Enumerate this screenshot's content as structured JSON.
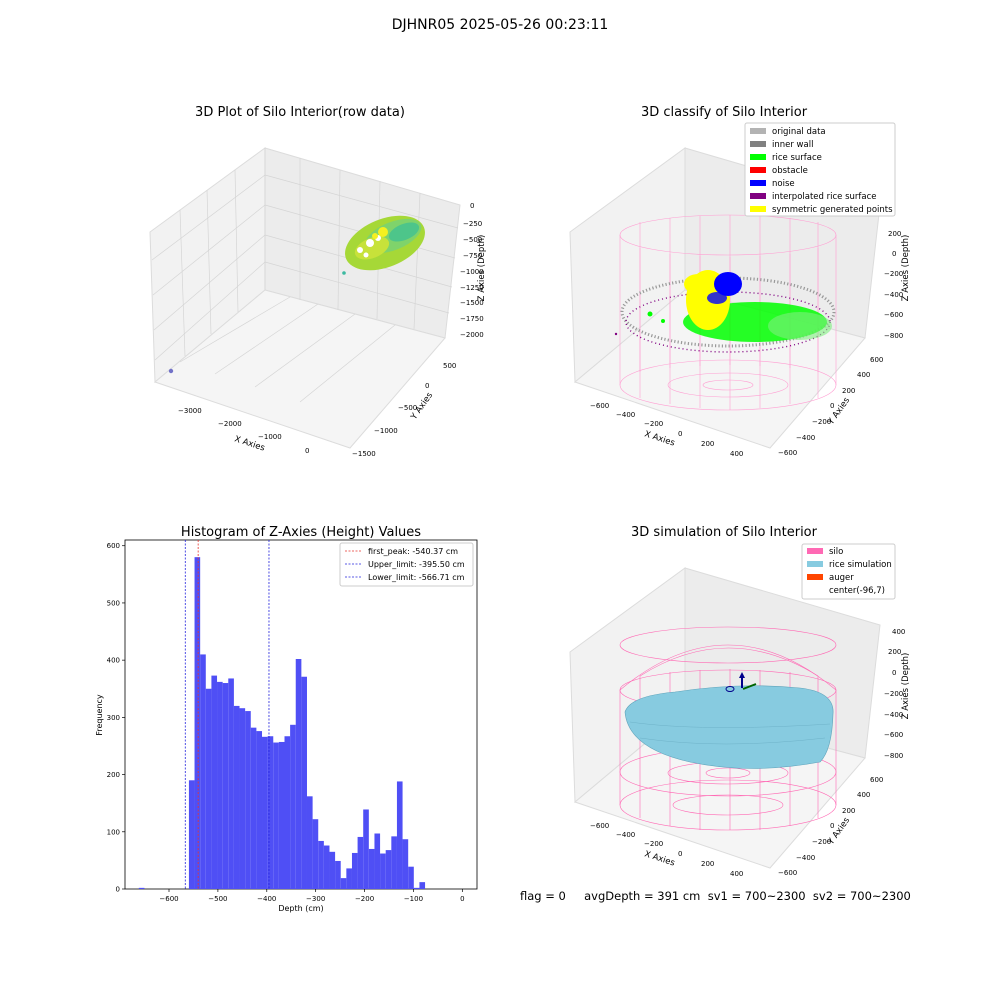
{
  "figure": {
    "title": "DJHNR05 2025-05-26 00:23:11",
    "status_line": "flag = 0     avgDepth = 391 cm  sv1 = 700~2300  sv2 = 700~2300"
  },
  "colors": {
    "hist_bar": "#4f4ff5",
    "first_peak": "#e8362e",
    "limit": "#2222dd",
    "silo": "#ff69b4",
    "rice_simulation": "#87cbe0",
    "auger": "#ff4500",
    "original_data": "#b3b3b3",
    "inner_wall": "#808080",
    "rice_surface": "#00ff00",
    "obstacle": "#ff0000",
    "noise": "#0000ff",
    "interpolated_rice_surface": "#800080",
    "symmetric_generated_points": "#ffff00"
  },
  "chart_data": [
    {
      "type": "scatter",
      "title": "3D Plot of Silo Interior(row data)",
      "xlabel": "X Axies",
      "ylabel": "Y Axies",
      "zlabel": "Z Axies (Depth)",
      "x_ticks": [
        "−3000",
        "−2000",
        "−1000",
        "0"
      ],
      "y_ticks": [
        "500",
        "0",
        "−500",
        "−1000",
        "−1500"
      ],
      "z_ticks": [
        "0",
        "−250",
        "−500",
        "−750",
        "−1000",
        "−1250",
        "−1500",
        "−1750",
        "−2000"
      ],
      "xlim": [
        -3500,
        500
      ],
      "ylim": [
        -1500,
        600
      ],
      "zlim": [
        -2100,
        100
      ]
    },
    {
      "type": "scatter",
      "title": "3D classify of Silo Interior",
      "xlabel": "X Axies",
      "ylabel": "Y Axies",
      "zlabel": "Z Axies (Depth)",
      "x_ticks": [
        "−600",
        "−400",
        "−200",
        "0",
        "200",
        "400"
      ],
      "y_ticks": [
        "600",
        "400",
        "200",
        "0",
        "−200",
        "−400",
        "−600"
      ],
      "z_ticks": [
        "200",
        "0",
        "−200",
        "−400",
        "−600",
        "−800"
      ],
      "legend": [
        "original data",
        "inner wall",
        "rice surface",
        "obstacle",
        "noise",
        "interpolated rice surface",
        "symmetric generated points"
      ],
      "legend_loc": "upper right"
    },
    {
      "type": "bar",
      "title": "Histogram of Z-Axies (Height) Values",
      "xlabel": "Depth (cm)",
      "ylabel": "Frequency",
      "xlim": [
        -690,
        30
      ],
      "ylim": [
        0,
        610
      ],
      "x_ticks": [
        -600,
        -500,
        -400,
        -300,
        -200,
        -100,
        0
      ],
      "x_tick_labels": [
        "−600",
        "−500",
        "−400",
        "−300",
        "−200",
        "−100",
        "0"
      ],
      "y_ticks": [
        0,
        100,
        200,
        300,
        400,
        500,
        600
      ],
      "y_tick_labels": [
        "0",
        "100",
        "200",
        "300",
        "400",
        "500",
        "600"
      ],
      "bin_width": 11.5,
      "bins": [
        {
          "x": -656,
          "v": 2
        },
        {
          "x": -553.5,
          "v": 190
        },
        {
          "x": -542,
          "v": 580
        },
        {
          "x": -530.5,
          "v": 410
        },
        {
          "x": -519,
          "v": 350
        },
        {
          "x": -507.5,
          "v": 373
        },
        {
          "x": -496,
          "v": 362
        },
        {
          "x": -484.5,
          "v": 360
        },
        {
          "x": -473,
          "v": 368
        },
        {
          "x": -461.5,
          "v": 320
        },
        {
          "x": -450,
          "v": 316
        },
        {
          "x": -438.5,
          "v": 311
        },
        {
          "x": -427,
          "v": 282
        },
        {
          "x": -415.5,
          "v": 276
        },
        {
          "x": -404,
          "v": 266
        },
        {
          "x": -392.5,
          "v": 267
        },
        {
          "x": -381,
          "v": 256
        },
        {
          "x": -369.5,
          "v": 257
        },
        {
          "x": -358,
          "v": 267
        },
        {
          "x": -346.5,
          "v": 287
        },
        {
          "x": -335,
          "v": 402
        },
        {
          "x": -323.5,
          "v": 371
        },
        {
          "x": -312,
          "v": 162
        },
        {
          "x": -300.5,
          "v": 122
        },
        {
          "x": -289,
          "v": 84
        },
        {
          "x": -277.5,
          "v": 76
        },
        {
          "x": -266,
          "v": 65
        },
        {
          "x": -254.5,
          "v": 49
        },
        {
          "x": -243,
          "v": 19
        },
        {
          "x": -231.5,
          "v": 36
        },
        {
          "x": -220,
          "v": 63
        },
        {
          "x": -208.5,
          "v": 91
        },
        {
          "x": -197,
          "v": 139
        },
        {
          "x": -185.5,
          "v": 70
        },
        {
          "x": -174,
          "v": 97
        },
        {
          "x": -162.5,
          "v": 62
        },
        {
          "x": -151,
          "v": 68
        },
        {
          "x": -139.5,
          "v": 92
        },
        {
          "x": -128,
          "v": 188
        },
        {
          "x": -116.5,
          "v": 87
        },
        {
          "x": -105,
          "v": 39
        },
        {
          "x": -93.5,
          "v": 2
        },
        {
          "x": -82,
          "v": 12
        }
      ],
      "lines": [
        {
          "name": "first_peak: -540.37 cm",
          "x": -540.37,
          "style": "red"
        },
        {
          "name": "Upper_limit: -395.50 cm",
          "x": -395.5,
          "style": "blue"
        },
        {
          "name": "Lower_limit: -566.71 cm",
          "x": -566.71,
          "style": "blue"
        }
      ],
      "legend_loc": "upper right"
    },
    {
      "type": "scatter",
      "title": "3D simulation of Silo Interior",
      "xlabel": "X Axies",
      "ylabel": "Y Axies",
      "zlabel": "Z Axies (Depth)",
      "x_ticks": [
        "−600",
        "−400",
        "−200",
        "0",
        "200",
        "400"
      ],
      "y_ticks": [
        "600",
        "400",
        "200",
        "0",
        "−200",
        "−400",
        "−600"
      ],
      "z_ticks": [
        "400",
        "200",
        "0",
        "−200",
        "−400",
        "−600",
        "−800"
      ],
      "legend": [
        "silo",
        "rice simulation",
        "auger",
        "center(-96,7)"
      ],
      "legend_loc": "upper right"
    }
  ]
}
